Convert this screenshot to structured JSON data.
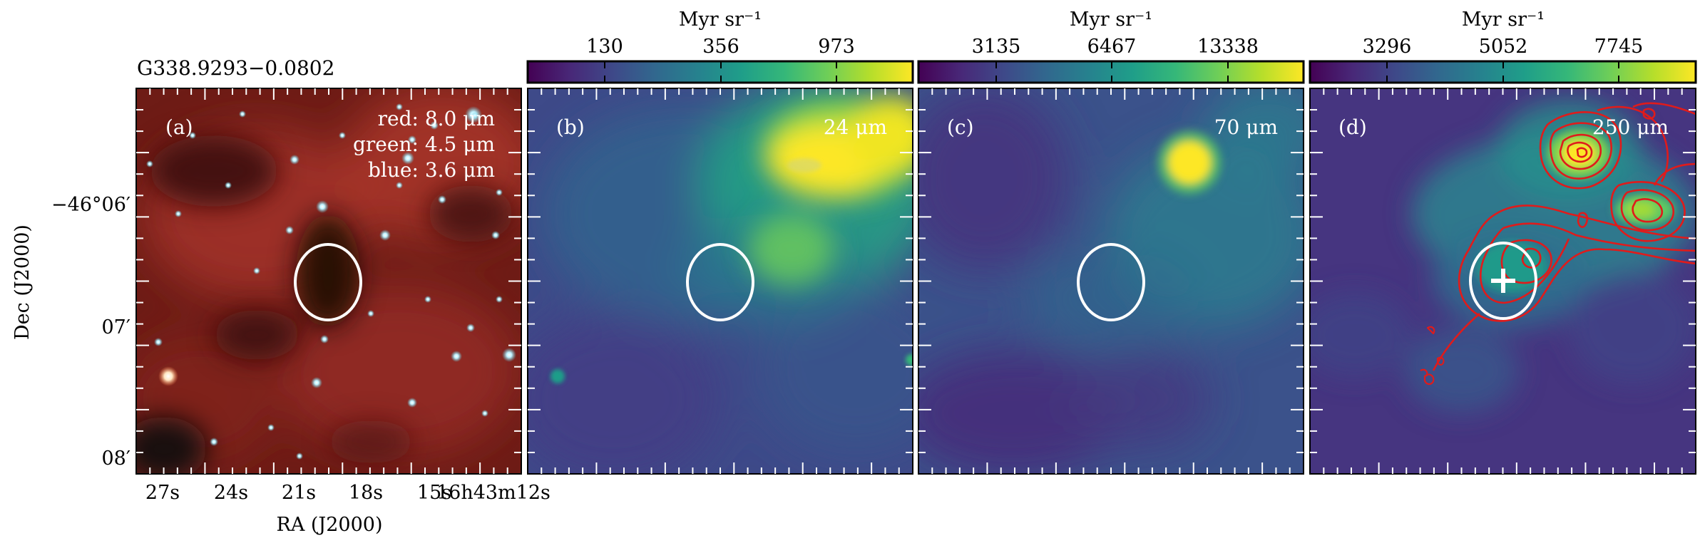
{
  "source_name": "G338.9293−0.0802",
  "colors": {
    "ellipse": "#ffffff",
    "contour": "#e01b1b",
    "panel_text": "#ffffff",
    "viridis": [
      "#440154",
      "#482878",
      "#3e4989",
      "#31688e",
      "#26828e",
      "#1f9e89",
      "#35b779",
      "#6ece58",
      "#b5de2b",
      "#fde725"
    ]
  },
  "panels": [
    {
      "label": "(a)",
      "composite": {
        "red": "red: 8.0 μm",
        "green": "green: 4.5 μm",
        "blue": "blue: 3.6 μm"
      }
    },
    {
      "label": "(b)",
      "band": "24 μm",
      "colorbar": {
        "unit": "Myr sr⁻¹",
        "ticks": [
          "130",
          "356",
          "973"
        ]
      }
    },
    {
      "label": "(c)",
      "band": "70 μm",
      "colorbar": {
        "unit": "Myr sr⁻¹",
        "ticks": [
          "3135",
          "6467",
          "13338"
        ]
      }
    },
    {
      "label": "(d)",
      "band": "250 μm",
      "colorbar": {
        "unit": "Myr sr⁻¹",
        "ticks": [
          "3296",
          "5052",
          "7745"
        ]
      }
    }
  ],
  "axes": {
    "xlabel": "RA (J2000)",
    "ylabel": "Dec (J2000)",
    "x_ticks": [
      "27s",
      "24s",
      "21s",
      "18s",
      "15s",
      "16h43m12s"
    ],
    "y_ticks": [
      "−46°06′",
      "07′",
      "08′"
    ]
  }
}
